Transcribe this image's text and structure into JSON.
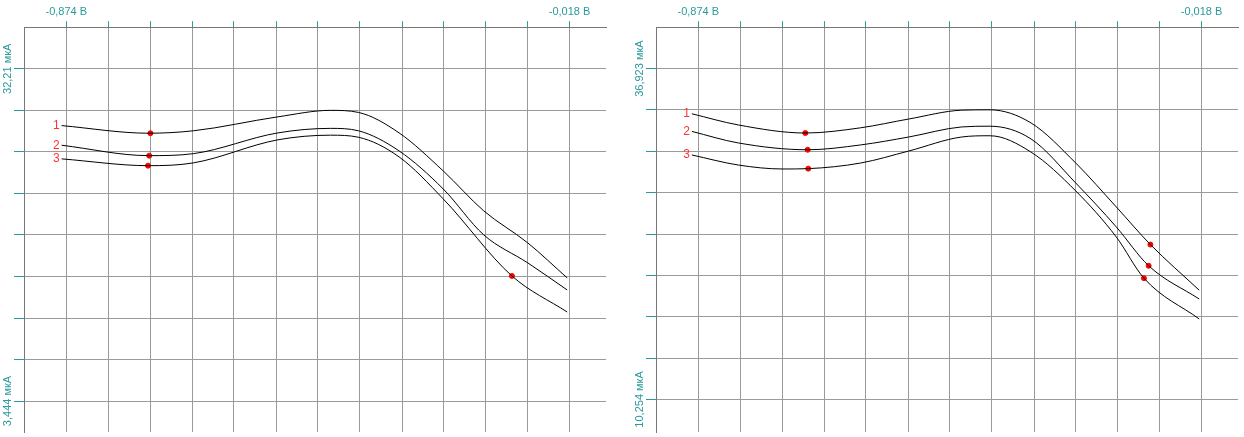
{
  "chart_data": [
    {
      "type": "line",
      "xlim": [
        -0.946,
        0.044
      ],
      "ylim": [
        0.76,
        35.81
      ],
      "grid": true,
      "xticks": [
        {
          "value": -0.874,
          "label": "-0,874 В"
        },
        {
          "value": -0.803,
          "label": null
        },
        {
          "value": -0.731,
          "label": null
        },
        {
          "value": -0.66,
          "label": null
        },
        {
          "value": -0.589,
          "label": null
        },
        {
          "value": -0.517,
          "label": null
        },
        {
          "value": -0.446,
          "label": null
        },
        {
          "value": -0.375,
          "label": null
        },
        {
          "value": -0.303,
          "label": null
        },
        {
          "value": -0.232,
          "label": null
        },
        {
          "value": -0.161,
          "label": null
        },
        {
          "value": -0.089,
          "label": null
        },
        {
          "value": -0.018,
          "label": "-0,018 В"
        }
      ],
      "yticks": [
        {
          "value": 32.21,
          "label": "32,21 мкА"
        },
        {
          "value": 28.61,
          "label": null
        },
        {
          "value": 25.02,
          "label": null
        },
        {
          "value": 21.42,
          "label": null
        },
        {
          "value": 17.83,
          "label": null
        },
        {
          "value": 14.23,
          "label": null
        },
        {
          "value": 10.63,
          "label": null
        },
        {
          "value": 7.04,
          "label": null
        },
        {
          "value": 3.444,
          "label": "3,444 мкА"
        }
      ],
      "series": [
        {
          "name": "1",
          "color": "#000000",
          "x": [
            -0.882,
            -0.734,
            -0.658,
            -0.514,
            -0.425,
            -0.377,
            -0.308,
            -0.233,
            -0.164,
            -0.089,
            -0.022
          ],
          "values": [
            27.29,
            26.63,
            26.84,
            28.05,
            28.61,
            28.43,
            26.66,
            23.37,
            19.91,
            17.13,
            14.1
          ]
        },
        {
          "name": "2",
          "color": "#000000",
          "x": [
            -0.882,
            -0.734,
            -0.658,
            -0.514,
            -0.425,
            -0.377,
            -0.308,
            -0.233,
            -0.164,
            -0.089,
            -0.022
          ],
          "values": [
            25.59,
            24.69,
            24.86,
            26.66,
            27.05,
            26.84,
            25.1,
            21.81,
            17.83,
            15.4,
            13.06
          ]
        },
        {
          "name": "3",
          "color": "#000000",
          "x": [
            -0.882,
            -0.734,
            -0.658,
            -0.514,
            -0.425,
            -0.377,
            -0.308,
            -0.233,
            -0.116,
            -0.022
          ],
          "values": [
            24.41,
            23.82,
            24.06,
            26.06,
            26.46,
            26.28,
            24.58,
            20.95,
            14.27,
            11.15
          ]
        },
        {
          "type": "scatter",
          "color": "#ff0000",
          "marker": "circle",
          "x": [
            -0.731,
            -0.733,
            -0.735,
            -0.116
          ],
          "values": [
            26.63,
            24.69,
            23.82,
            14.27
          ]
        }
      ]
    },
    {
      "type": "line",
      "xlim": [
        -0.946,
        0.044
      ],
      "ylim": [
        7.63,
        40.26
      ],
      "grid": true,
      "xticks": [
        {
          "value": -0.874,
          "label": "-0,874 В"
        },
        {
          "value": -0.803,
          "label": null
        },
        {
          "value": -0.731,
          "label": null
        },
        {
          "value": -0.66,
          "label": null
        },
        {
          "value": -0.589,
          "label": null
        },
        {
          "value": -0.517,
          "label": null
        },
        {
          "value": -0.446,
          "label": null
        },
        {
          "value": -0.375,
          "label": null
        },
        {
          "value": -0.303,
          "label": null
        },
        {
          "value": -0.232,
          "label": null
        },
        {
          "value": -0.161,
          "label": null
        },
        {
          "value": -0.089,
          "label": null
        },
        {
          "value": -0.018,
          "label": "-0,018 В"
        }
      ],
      "yticks": [
        {
          "value": 36.923,
          "label": "36,923 мкА"
        },
        {
          "value": 33.589,
          "label": null
        },
        {
          "value": 30.256,
          "label": null
        },
        {
          "value": 26.922,
          "label": null
        },
        {
          "value": 23.588,
          "label": null
        },
        {
          "value": 20.255,
          "label": null
        },
        {
          "value": 16.921,
          "label": null
        },
        {
          "value": 13.588,
          "label": null
        },
        {
          "value": 10.254,
          "label": "10,254 мкА"
        }
      ],
      "series": [
        {
          "name": "1",
          "color": "#000000",
          "x": [
            -0.885,
            -0.806,
            -0.692,
            -0.598,
            -0.516,
            -0.426,
            -0.378,
            -0.308,
            -0.232,
            -0.163,
            -0.105,
            -0.022
          ],
          "values": [
            33.28,
            32.38,
            31.73,
            32.15,
            32.86,
            33.57,
            33.6,
            32.54,
            29.31,
            25.77,
            22.74,
            19.06
          ]
        },
        {
          "name": "2",
          "color": "#000000",
          "x": [
            -0.885,
            -0.806,
            -0.688,
            -0.598,
            -0.516,
            -0.426,
            -0.378,
            -0.308,
            -0.232,
            -0.163,
            -0.108,
            -0.022
          ],
          "values": [
            31.86,
            30.93,
            30.38,
            30.77,
            31.41,
            32.22,
            32.28,
            31.25,
            27.7,
            24.16,
            21.03,
            18.35
          ]
        },
        {
          "name": "3",
          "color": "#000000",
          "x": [
            -0.885,
            -0.806,
            -0.73,
            -0.687,
            -0.598,
            -0.516,
            -0.426,
            -0.378,
            -0.308,
            -0.232,
            -0.163,
            -0.116,
            -0.022
          ],
          "values": [
            29.96,
            29.15,
            28.83,
            28.86,
            29.31,
            30.28,
            31.41,
            31.51,
            30.19,
            27.06,
            23.35,
            20.03,
            16.74
          ]
        },
        {
          "type": "scatter",
          "color": "#ff0000",
          "marker": "circle",
          "x": [
            -0.692,
            -0.688,
            -0.687,
            -0.105,
            -0.108,
            -0.116
          ],
          "values": [
            31.73,
            30.38,
            28.86,
            22.74,
            21.03,
            20.03
          ]
        }
      ]
    }
  ]
}
